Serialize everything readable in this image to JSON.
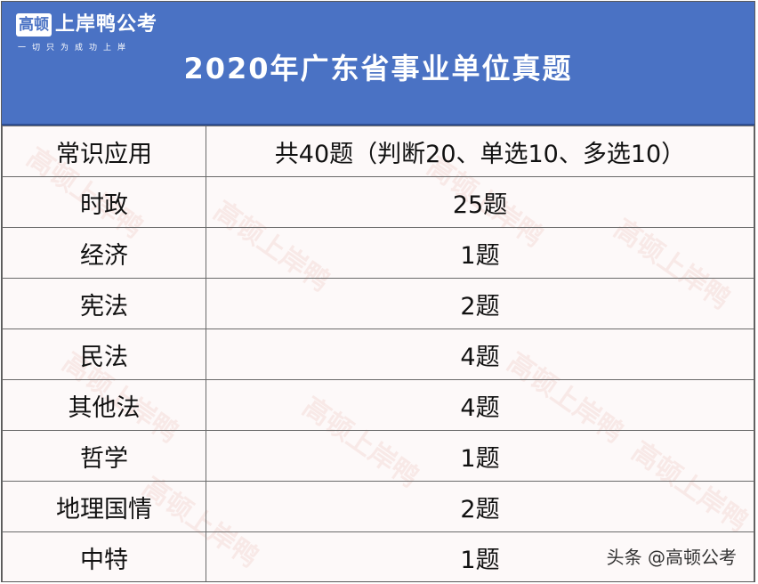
{
  "brand": {
    "logo_box": "高顿",
    "logo_name": "上岸鸭公考",
    "slogan": "一切只为成功上岸"
  },
  "title": "2020年广东省事业单位真题",
  "table": {
    "header": [
      "常识应用",
      "共40题（判断20、单选10、多选10）"
    ],
    "rows": [
      [
        "时政",
        "25题"
      ],
      [
        "经济",
        "1题"
      ],
      [
        "宪法",
        "2题"
      ],
      [
        "民法",
        "4题"
      ],
      [
        "其他法",
        "4题"
      ],
      [
        "哲学",
        "1题"
      ],
      [
        "地理国情",
        "2题"
      ],
      [
        "中特",
        "1题"
      ]
    ]
  },
  "credit": "头条 @高顿公考",
  "colors": {
    "header_bg": "#4a72c4",
    "grid": "#6a6a6a"
  }
}
